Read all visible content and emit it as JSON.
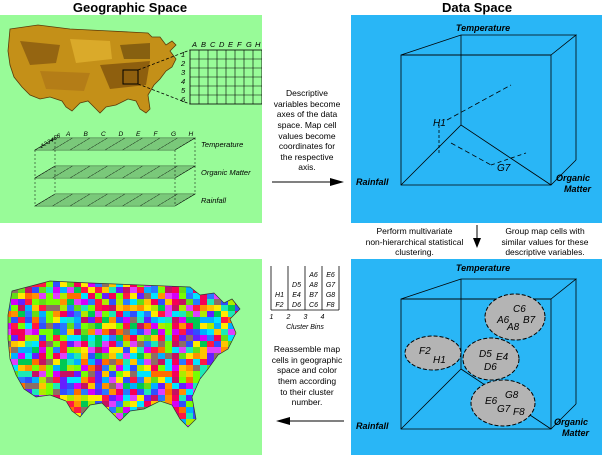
{
  "headers": {
    "left": "Geographic Space",
    "right": "Data Space"
  },
  "grid_cols": [
    "A",
    "B",
    "C",
    "D",
    "E",
    "F",
    "G",
    "H"
  ],
  "grid_rows": [
    "1",
    "2",
    "3",
    "4",
    "5",
    "6"
  ],
  "layers": [
    "Temperature",
    "Organic Matter",
    "Rainfall"
  ],
  "axes": {
    "temperature": "Temperature",
    "rainfall": "Rainfall",
    "organic_line1": "Organic",
    "organic_line2": "Matter"
  },
  "data_points": {
    "h1": "H1",
    "g7": "G7"
  },
  "captions": {
    "descriptive": [
      "Descriptive",
      "variables become",
      "axes of the data",
      "space. Map cell",
      "values become",
      "coordinates for",
      "the respective",
      "axis."
    ],
    "perform": [
      "Perform multivariate",
      "non-hierarchical statistical",
      "clustering."
    ],
    "group": [
      "Group map cells with",
      "similar values for these",
      "descriptive variables."
    ],
    "reassemble": [
      "Reassemble map",
      "cells in geographic",
      "space and color",
      "them according",
      "to their cluster",
      "number."
    ]
  },
  "cluster_bins": {
    "columns": [
      {
        "number": "1",
        "cells": [
          "H1",
          "F2"
        ]
      },
      {
        "number": "2",
        "cells": [
          "D5",
          "E4",
          "D6"
        ]
      },
      {
        "number": "3",
        "cells": [
          "A6",
          "A8",
          "B7",
          "C6"
        ]
      },
      {
        "number": "4",
        "cells": [
          "E6",
          "G7",
          "G8",
          "F8"
        ]
      }
    ],
    "label": "Cluster Bins"
  },
  "clusters": [
    {
      "cells": [
        "C6",
        "A6",
        "B7",
        "A8"
      ]
    },
    {
      "cells": [
        "F2",
        "H1"
      ]
    },
    {
      "cells": [
        "D5",
        "E4",
        "D6"
      ]
    },
    {
      "cells": [
        "G8",
        "E6",
        "G7",
        "F8"
      ]
    }
  ],
  "colors": {
    "green_panel": "#98fb98",
    "blue_panel": "#29b6f6",
    "cluster_fill": "#b4b4b4"
  }
}
